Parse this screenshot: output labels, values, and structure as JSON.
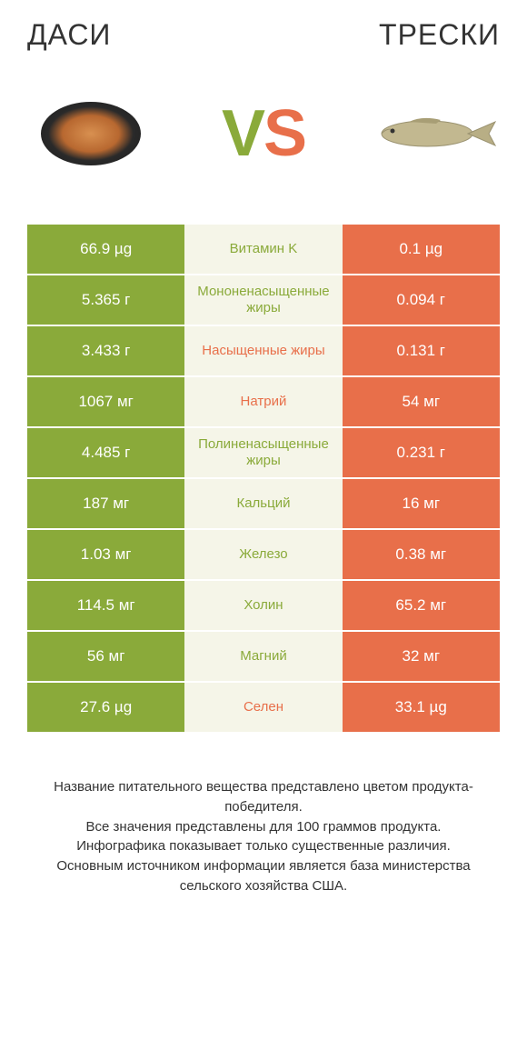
{
  "header": {
    "left_title": "ДАСИ",
    "right_title": "ТРЕСКИ",
    "vs_v": "V",
    "vs_s": "S"
  },
  "colors": {
    "green": "#8aaa3a",
    "orange": "#e86f4a",
    "mid_bg": "#f5f5e8",
    "white": "#ffffff"
  },
  "table": {
    "rows": [
      {
        "left": "66.9 µg",
        "mid": "Витамин K",
        "right": "0.1 µg",
        "winner": "left"
      },
      {
        "left": "5.365 г",
        "mid": "Мононенасыщенные жиры",
        "right": "0.094 г",
        "winner": "left"
      },
      {
        "left": "3.433 г",
        "mid": "Насыщенные жиры",
        "right": "0.131 г",
        "winner": "right"
      },
      {
        "left": "1067 мг",
        "mid": "Натрий",
        "right": "54 мг",
        "winner": "right"
      },
      {
        "left": "4.485 г",
        "mid": "Полиненасыщенные жиры",
        "right": "0.231 г",
        "winner": "left"
      },
      {
        "left": "187 мг",
        "mid": "Кальций",
        "right": "16 мг",
        "winner": "left"
      },
      {
        "left": "1.03 мг",
        "mid": "Железо",
        "right": "0.38 мг",
        "winner": "left"
      },
      {
        "left": "114.5 мг",
        "mid": "Холин",
        "right": "65.2 мг",
        "winner": "left"
      },
      {
        "left": "56 мг",
        "mid": "Магний",
        "right": "32 мг",
        "winner": "left"
      },
      {
        "left": "27.6 µg",
        "mid": "Селен",
        "right": "33.1 µg",
        "winner": "right"
      }
    ]
  },
  "footer": {
    "line1": "Название питательного вещества представлено цветом продукта-победителя.",
    "line2": "Все значения представлены для 100 граммов продукта.",
    "line3": "Инфографика показывает только существенные различия.",
    "line4": "Основным источником информации является база министерства сельского хозяйства США."
  }
}
